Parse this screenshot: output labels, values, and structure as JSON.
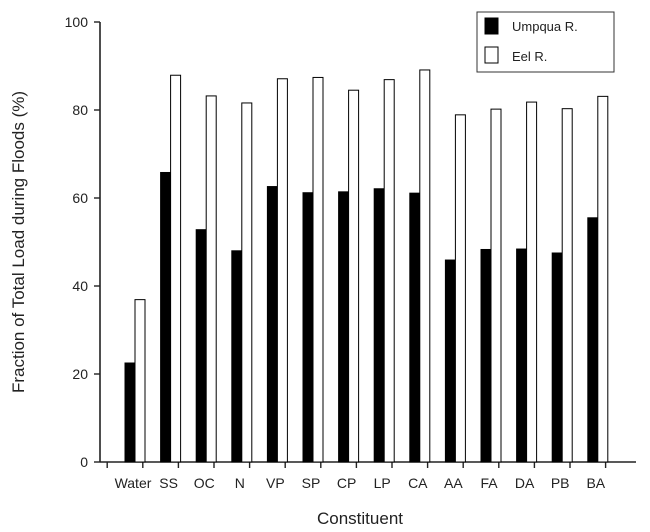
{
  "chart_data": {
    "type": "bar",
    "xlabel": "Constituent",
    "ylabel": "Fraction of Total Load during Floods (%)",
    "ylim": [
      0,
      100
    ],
    "yticks": [
      0,
      20,
      40,
      60,
      80,
      100
    ],
    "grid": false,
    "legend_position": "top-right",
    "categories": [
      "Water",
      "SS",
      "OC",
      "N",
      "VP",
      "SP",
      "CP",
      "LP",
      "CA",
      "AA",
      "FA",
      "DA",
      "PB",
      "BA"
    ],
    "series": [
      {
        "name": "Umpqua R.",
        "fill": "#000000",
        "values": [
          22.5,
          65.8,
          52.8,
          48.0,
          62.6,
          61.2,
          61.4,
          62.1,
          61.1,
          45.9,
          48.3,
          48.4,
          47.5,
          55.5
        ]
      },
      {
        "name": "Eel R.",
        "fill": "#ffffff",
        "values": [
          36.9,
          87.9,
          83.2,
          81.6,
          87.1,
          87.4,
          84.5,
          86.9,
          89.1,
          78.9,
          80.2,
          81.8,
          80.3,
          83.1
        ]
      }
    ]
  }
}
